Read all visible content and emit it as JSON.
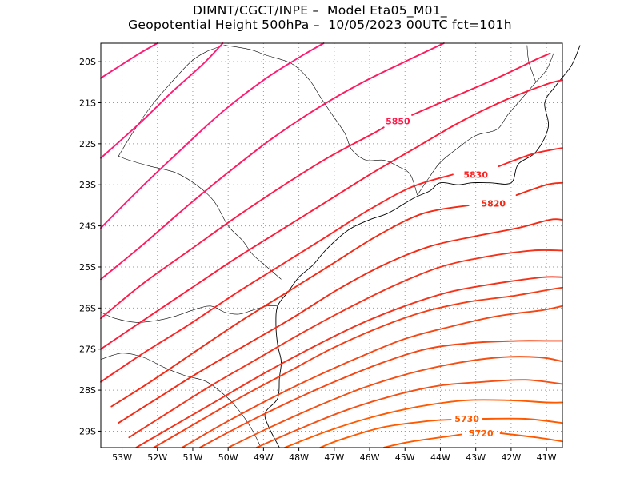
{
  "title": {
    "line1": "DIMNT/CGCT/INPE –  Model Eta05_M01_",
    "line2": "Geopotential Height 500hPa –  10/05/2023 00UTC fct=101h"
  },
  "axes": {
    "lat_labels": [
      "20S",
      "21S",
      "22S",
      "23S",
      "24S",
      "25S",
      "26S",
      "27S",
      "28S",
      "29S"
    ],
    "lon_labels": [
      "53W",
      "52W",
      "51W",
      "50W",
      "49W",
      "48W",
      "47W",
      "46W",
      "45W",
      "44W",
      "43W",
      "42W",
      "41W"
    ],
    "lat_range": [
      -29.4,
      -19.55
    ],
    "lon_range": [
      -53.6,
      -40.55
    ],
    "grid": "dotted"
  },
  "contour_labels": [
    {
      "text": "5850",
      "lon": -45.2,
      "lat": -21.45,
      "color": "#ff1a4a"
    },
    {
      "text": "5830",
      "lon": -43.0,
      "lat": -22.75,
      "color": "#ff2424"
    },
    {
      "text": "5820",
      "lon": -42.5,
      "lat": -23.45,
      "color": "#f52a14"
    },
    {
      "text": "5730",
      "lon": -43.25,
      "lat": -28.7,
      "color": "#ff5a00"
    },
    {
      "text": "5720",
      "lon": -42.85,
      "lat": -29.05,
      "color": "#ff5a00"
    }
  ],
  "contours": [
    {
      "color": "#ff1a73",
      "points": [
        [
          -53.6,
          -20.4
        ],
        [
          -52.6,
          -19.85
        ],
        [
          -52.0,
          -19.55
        ]
      ]
    },
    {
      "color": "#ff1a73",
      "points": [
        [
          -53.6,
          -22.35
        ],
        [
          -52.5,
          -21.5
        ],
        [
          -51.6,
          -20.75
        ],
        [
          -50.7,
          -20.05
        ],
        [
          -50.15,
          -19.55
        ]
      ]
    },
    {
      "color": "#ff1a73",
      "points": [
        [
          -53.6,
          -24.05
        ],
        [
          -52.5,
          -23.1
        ],
        [
          -51.4,
          -22.2
        ],
        [
          -50.2,
          -21.25
        ],
        [
          -49.0,
          -20.45
        ],
        [
          -48.0,
          -19.9
        ],
        [
          -47.3,
          -19.55
        ]
      ]
    },
    {
      "color": "#ff1a60",
      "points": [
        [
          -53.6,
          -25.3
        ],
        [
          -52.4,
          -24.45
        ],
        [
          -51.2,
          -23.55
        ],
        [
          -50.0,
          -22.7
        ],
        [
          -48.8,
          -21.9
        ],
        [
          -47.6,
          -21.2
        ],
        [
          -46.3,
          -20.55
        ],
        [
          -45.0,
          -20.0
        ],
        [
          -43.9,
          -19.55
        ]
      ]
    },
    {
      "color": "#ff1a4a",
      "points": [
        [
          -53.6,
          -26.25
        ],
        [
          -52.4,
          -25.4
        ],
        [
          -51.1,
          -24.6
        ],
        [
          -49.8,
          -23.8
        ],
        [
          -48.5,
          -23.05
        ],
        [
          -47.2,
          -22.35
        ],
        [
          -45.9,
          -21.75
        ],
        [
          -45.6,
          -21.6
        ]
      ]
    },
    {
      "color": "#ff1a4a",
      "points": [
        [
          -44.8,
          -21.3
        ],
        [
          -43.6,
          -20.85
        ],
        [
          -42.4,
          -20.4
        ],
        [
          -41.3,
          -19.95
        ],
        [
          -40.9,
          -19.8
        ]
      ]
    },
    {
      "color": "#ff1a38",
      "points": [
        [
          -53.6,
          -27.0
        ],
        [
          -52.4,
          -26.3
        ],
        [
          -51.1,
          -25.55
        ],
        [
          -49.8,
          -24.8
        ],
        [
          -48.5,
          -24.1
        ],
        [
          -47.2,
          -23.4
        ],
        [
          -45.9,
          -22.7
        ],
        [
          -44.6,
          -22.05
        ],
        [
          -43.4,
          -21.45
        ],
        [
          -42.2,
          -20.95
        ],
        [
          -41.0,
          -20.55
        ],
        [
          -40.55,
          -20.45
        ]
      ]
    },
    {
      "color": "#ff2424",
      "points": [
        [
          -53.6,
          -27.8
        ],
        [
          -52.4,
          -27.1
        ],
        [
          -51.1,
          -26.4
        ],
        [
          -49.8,
          -25.65
        ],
        [
          -48.5,
          -24.95
        ],
        [
          -47.2,
          -24.25
        ],
        [
          -46.0,
          -23.6
        ],
        [
          -44.8,
          -23.05
        ],
        [
          -43.65,
          -22.75
        ]
      ]
    },
    {
      "color": "#ff2424",
      "points": [
        [
          -42.35,
          -22.55
        ],
        [
          -41.4,
          -22.25
        ],
        [
          -40.55,
          -22.1
        ]
      ]
    },
    {
      "color": "#f52a14",
      "points": [
        [
          -53.3,
          -28.4
        ],
        [
          -52.2,
          -27.8
        ],
        [
          -51.0,
          -27.1
        ],
        [
          -49.7,
          -26.35
        ],
        [
          -48.4,
          -25.65
        ],
        [
          -47.1,
          -24.95
        ],
        [
          -45.8,
          -24.25
        ],
        [
          -44.5,
          -23.7
        ],
        [
          -43.2,
          -23.5
        ]
      ]
    },
    {
      "color": "#f52a14",
      "points": [
        [
          -41.85,
          -23.25
        ],
        [
          -41.0,
          -23.0
        ],
        [
          -40.55,
          -22.95
        ]
      ]
    },
    {
      "color": "#f52a14",
      "points": [
        [
          -53.1,
          -28.8
        ],
        [
          -52.0,
          -28.2
        ],
        [
          -50.8,
          -27.55
        ],
        [
          -49.5,
          -26.9
        ],
        [
          -48.2,
          -26.25
        ],
        [
          -46.9,
          -25.55
        ],
        [
          -45.6,
          -24.95
        ],
        [
          -44.3,
          -24.5
        ],
        [
          -43.0,
          -24.25
        ],
        [
          -41.8,
          -24.05
        ],
        [
          -40.9,
          -23.85
        ],
        [
          -40.55,
          -23.85
        ]
      ]
    },
    {
      "color": "#f5321a",
      "points": [
        [
          -52.8,
          -29.15
        ],
        [
          -51.7,
          -28.55
        ],
        [
          -50.5,
          -27.9
        ],
        [
          -49.2,
          -27.25
        ],
        [
          -47.9,
          -26.6
        ],
        [
          -46.6,
          -26.0
        ],
        [
          -45.3,
          -25.45
        ],
        [
          -44.0,
          -25.0
        ],
        [
          -42.7,
          -24.75
        ],
        [
          -41.4,
          -24.6
        ],
        [
          -40.55,
          -24.6
        ]
      ]
    },
    {
      "color": "#f5321a",
      "points": [
        [
          -52.6,
          -29.4
        ],
        [
          -51.5,
          -28.85
        ],
        [
          -50.2,
          -28.2
        ],
        [
          -48.9,
          -27.55
        ],
        [
          -47.6,
          -26.95
        ],
        [
          -46.3,
          -26.4
        ],
        [
          -45.0,
          -25.95
        ],
        [
          -43.7,
          -25.6
        ],
        [
          -42.4,
          -25.4
        ],
        [
          -41.1,
          -25.25
        ],
        [
          -40.55,
          -25.25
        ]
      ]
    },
    {
      "color": "#f53c14",
      "points": [
        [
          -52.1,
          -29.4
        ],
        [
          -51.0,
          -28.85
        ],
        [
          -49.7,
          -28.2
        ],
        [
          -48.4,
          -27.6
        ],
        [
          -47.1,
          -27.0
        ],
        [
          -45.8,
          -26.5
        ],
        [
          -44.5,
          -26.1
        ],
        [
          -43.2,
          -25.85
        ],
        [
          -41.9,
          -25.7
        ],
        [
          -40.9,
          -25.55
        ],
        [
          -40.55,
          -25.5
        ]
      ]
    },
    {
      "color": "#f54614",
      "points": [
        [
          -51.3,
          -29.4
        ],
        [
          -50.2,
          -28.85
        ],
        [
          -48.9,
          -28.25
        ],
        [
          -47.6,
          -27.7
        ],
        [
          -46.3,
          -27.2
        ],
        [
          -45.0,
          -26.75
        ],
        [
          -43.7,
          -26.45
        ],
        [
          -42.4,
          -26.2
        ],
        [
          -41.1,
          -26.05
        ],
        [
          -40.55,
          -25.95
        ]
      ]
    },
    {
      "color": "#f54614",
      "points": [
        [
          -50.8,
          -29.4
        ],
        [
          -49.6,
          -28.85
        ],
        [
          -48.3,
          -28.3
        ],
        [
          -47.0,
          -27.8
        ],
        [
          -45.7,
          -27.35
        ],
        [
          -44.4,
          -27.0
        ],
        [
          -43.1,
          -26.85
        ],
        [
          -41.8,
          -26.8
        ],
        [
          -41.0,
          -26.8
        ],
        [
          -40.55,
          -26.8
        ]
      ]
    },
    {
      "color": "#f55014",
      "points": [
        [
          -50.0,
          -29.4
        ],
        [
          -48.8,
          -28.9
        ],
        [
          -47.5,
          -28.4
        ],
        [
          -46.2,
          -27.95
        ],
        [
          -44.9,
          -27.6
        ],
        [
          -43.6,
          -27.35
        ],
        [
          -42.3,
          -27.2
        ],
        [
          -41.2,
          -27.2
        ],
        [
          -40.55,
          -27.3
        ]
      ]
    },
    {
      "color": "#f55014",
      "points": [
        [
          -49.2,
          -29.4
        ],
        [
          -48.0,
          -28.95
        ],
        [
          -46.7,
          -28.5
        ],
        [
          -45.4,
          -28.15
        ],
        [
          -44.1,
          -27.9
        ],
        [
          -42.8,
          -27.8
        ],
        [
          -41.6,
          -27.75
        ],
        [
          -40.55,
          -27.85
        ]
      ]
    },
    {
      "color": "#ff5a00",
      "points": [
        [
          -48.4,
          -29.4
        ],
        [
          -47.2,
          -29.0
        ],
        [
          -45.9,
          -28.65
        ],
        [
          -44.6,
          -28.4
        ],
        [
          -43.3,
          -28.25
        ],
        [
          -42.0,
          -28.25
        ],
        [
          -41.0,
          -28.3
        ],
        [
          -40.55,
          -28.3
        ]
      ]
    },
    {
      "color": "#ff5a00",
      "points": [
        [
          -47.4,
          -29.4
        ],
        [
          -46.8,
          -29.2
        ],
        [
          -45.6,
          -28.9
        ],
        [
          -44.3,
          -28.75
        ],
        [
          -43.7,
          -28.72
        ]
      ]
    },
    {
      "color": "#ff5a00",
      "points": [
        [
          -42.8,
          -28.7
        ],
        [
          -41.6,
          -28.7
        ],
        [
          -40.55,
          -28.8
        ]
      ]
    },
    {
      "color": "#ff5a00",
      "points": [
        [
          -45.6,
          -29.4
        ],
        [
          -44.8,
          -29.25
        ],
        [
          -43.4,
          -29.08
        ]
      ]
    },
    {
      "color": "#ff5a00",
      "points": [
        [
          -42.3,
          -29.05
        ],
        [
          -41.3,
          -29.15
        ],
        [
          -40.55,
          -29.25
        ]
      ]
    }
  ],
  "borders": [
    {
      "style": "coast",
      "points": [
        [
          -48.55,
          -29.4
        ],
        [
          -48.85,
          -28.9
        ],
        [
          -48.95,
          -28.55
        ],
        [
          -48.6,
          -28.2
        ],
        [
          -48.55,
          -27.7
        ],
        [
          -48.5,
          -27.3
        ],
        [
          -48.6,
          -26.9
        ],
        [
          -48.65,
          -26.4
        ],
        [
          -48.6,
          -25.95
        ],
        [
          -48.3,
          -25.6
        ],
        [
          -48.0,
          -25.25
        ],
        [
          -47.6,
          -24.95
        ],
        [
          -47.2,
          -24.55
        ],
        [
          -46.6,
          -24.1
        ],
        [
          -46.0,
          -23.85
        ],
        [
          -45.5,
          -23.7
        ],
        [
          -45.0,
          -23.45
        ],
        [
          -44.7,
          -23.3
        ],
        [
          -44.3,
          -23.15
        ],
        [
          -44.0,
          -22.95
        ],
        [
          -43.5,
          -23.0
        ],
        [
          -43.1,
          -22.95
        ],
        [
          -42.6,
          -22.95
        ],
        [
          -42.0,
          -22.95
        ],
        [
          -41.8,
          -22.5
        ],
        [
          -41.3,
          -22.2
        ],
        [
          -40.95,
          -21.6
        ],
        [
          -41.05,
          -21.0
        ],
        [
          -40.75,
          -20.6
        ],
        [
          -40.3,
          -20.1
        ],
        [
          -40.05,
          -19.6
        ]
      ]
    },
    {
      "style": "border",
      "points": [
        [
          -53.6,
          -26.1
        ],
        [
          -53.2,
          -26.25
        ],
        [
          -52.6,
          -26.35
        ],
        [
          -52.0,
          -26.3
        ],
        [
          -51.5,
          -26.2
        ],
        [
          -51.0,
          -26.05
        ],
        [
          -50.5,
          -25.95
        ],
        [
          -50.1,
          -26.1
        ],
        [
          -49.7,
          -26.15
        ],
        [
          -49.3,
          -26.05
        ],
        [
          -48.9,
          -25.95
        ],
        [
          -48.6,
          -25.95
        ]
      ]
    },
    {
      "style": "border",
      "points": [
        [
          -53.6,
          -27.25
        ],
        [
          -53.0,
          -27.1
        ],
        [
          -52.4,
          -27.2
        ],
        [
          -51.8,
          -27.45
        ],
        [
          -51.2,
          -27.65
        ],
        [
          -50.6,
          -27.8
        ],
        [
          -50.0,
          -28.2
        ],
        [
          -49.6,
          -28.6
        ],
        [
          -49.3,
          -29.0
        ],
        [
          -49.1,
          -29.35
        ]
      ]
    },
    {
      "style": "border",
      "points": [
        [
          -48.5,
          -25.3
        ],
        [
          -48.9,
          -25.0
        ],
        [
          -49.3,
          -24.7
        ],
        [
          -49.6,
          -24.35
        ],
        [
          -50.0,
          -24.0
        ],
        [
          -50.4,
          -23.4
        ],
        [
          -50.9,
          -23.0
        ],
        [
          -51.5,
          -22.7
        ],
        [
          -52.2,
          -22.55
        ],
        [
          -52.8,
          -22.4
        ],
        [
          -53.1,
          -22.3
        ]
      ]
    },
    {
      "style": "border",
      "points": [
        [
          -53.1,
          -22.3
        ],
        [
          -52.6,
          -21.6
        ],
        [
          -52.1,
          -21.0
        ],
        [
          -51.6,
          -20.5
        ],
        [
          -51.05,
          -20.0
        ],
        [
          -50.6,
          -19.75
        ],
        [
          -50.1,
          -19.6
        ]
      ]
    },
    {
      "style": "border",
      "points": [
        [
          -44.65,
          -23.25
        ],
        [
          -44.85,
          -22.75
        ],
        [
          -45.2,
          -22.55
        ],
        [
          -45.6,
          -22.4
        ],
        [
          -46.1,
          -22.4
        ],
        [
          -46.5,
          -22.15
        ],
        [
          -46.7,
          -21.75
        ],
        [
          -47.05,
          -21.3
        ],
        [
          -47.4,
          -20.85
        ],
        [
          -47.7,
          -20.45
        ],
        [
          -48.2,
          -20.05
        ],
        [
          -48.9,
          -19.85
        ],
        [
          -49.4,
          -19.7
        ],
        [
          -50.1,
          -19.6
        ]
      ]
    },
    {
      "style": "border",
      "points": [
        [
          -44.65,
          -23.25
        ],
        [
          -44.3,
          -22.8
        ],
        [
          -44.0,
          -22.45
        ],
        [
          -43.5,
          -22.1
        ],
        [
          -43.0,
          -21.8
        ],
        [
          -42.4,
          -21.65
        ],
        [
          -42.1,
          -21.3
        ],
        [
          -41.8,
          -21.0
        ],
        [
          -41.6,
          -20.8
        ],
        [
          -41.3,
          -20.5
        ],
        [
          -41.0,
          -20.2
        ],
        [
          -40.8,
          -19.8
        ]
      ]
    },
    {
      "style": "border",
      "points": [
        [
          -41.3,
          -20.5
        ],
        [
          -41.5,
          -20.0
        ],
        [
          -41.55,
          -19.6
        ]
      ]
    }
  ]
}
